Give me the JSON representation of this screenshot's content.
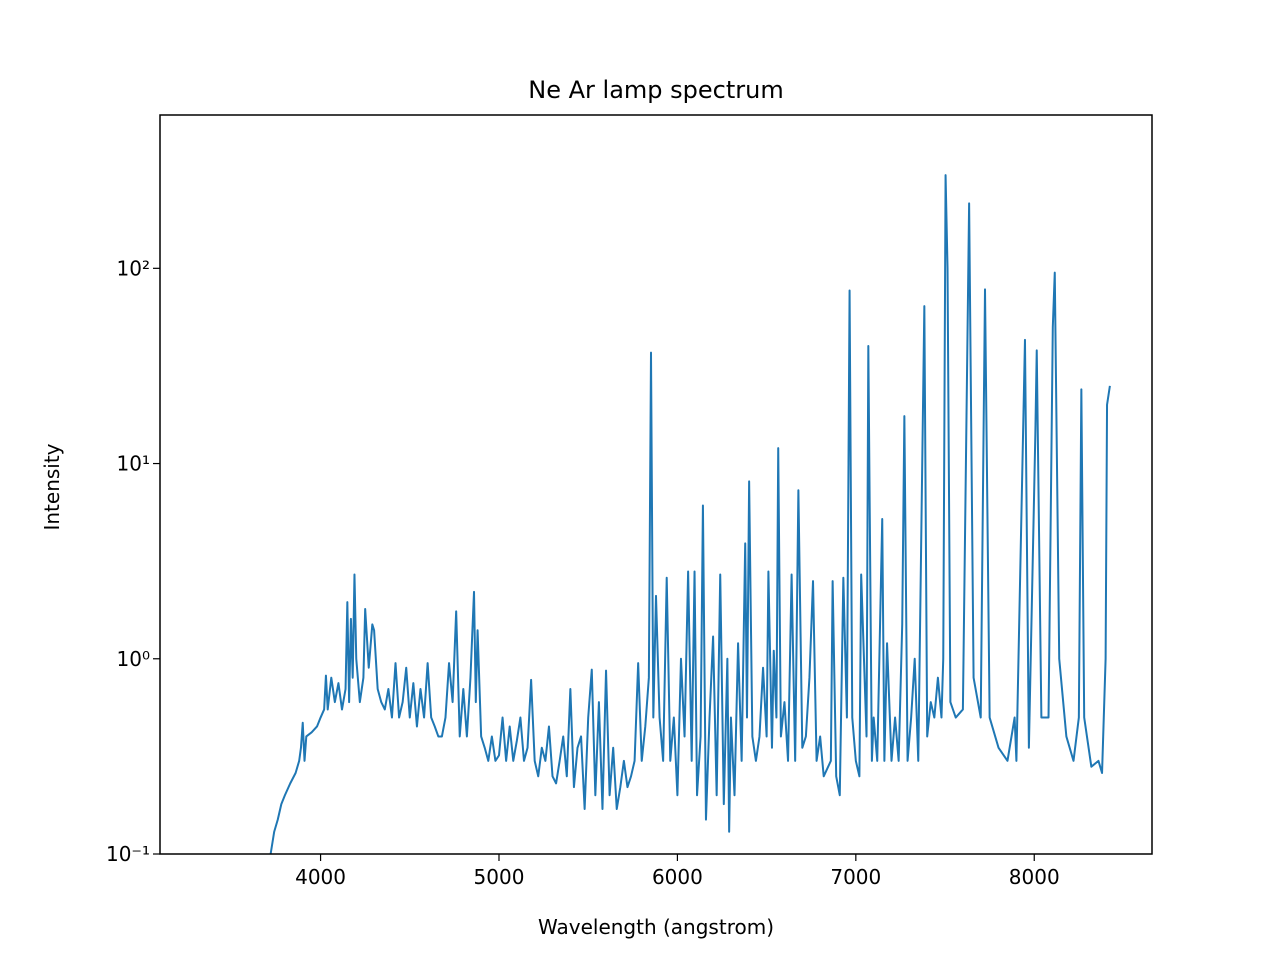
{
  "chart_data": {
    "type": "line",
    "title": "Ne Ar lamp spectrum",
    "xlabel": "Wavelength (angstrom)",
    "ylabel": "Intensity",
    "log_y": true,
    "grid": false,
    "xlim": [
      3100,
      8660
    ],
    "ylim": [
      0.1,
      610
    ],
    "xticks": [
      4000,
      5000,
      6000,
      7000,
      8000
    ],
    "yticks": [
      {
        "value": 0.1,
        "label": "10⁻¹"
      },
      {
        "value": 1,
        "label": "10⁰"
      },
      {
        "value": 10,
        "label": "10¹"
      },
      {
        "value": 100,
        "label": "10²"
      }
    ],
    "series": [
      {
        "color": "#1f77b4",
        "x": [
          3720,
          3740,
          3760,
          3780,
          3800,
          3830,
          3860,
          3880,
          3890,
          3900,
          3910,
          3920,
          3950,
          3980,
          4000,
          4020,
          4030,
          4040,
          4060,
          4080,
          4100,
          4120,
          4140,
          4150,
          4160,
          4170,
          4180,
          4190,
          4200,
          4220,
          4240,
          4250,
          4270,
          4290,
          4300,
          4320,
          4340,
          4360,
          4380,
          4400,
          4420,
          4440,
          4460,
          4480,
          4500,
          4520,
          4540,
          4560,
          4580,
          4600,
          4620,
          4640,
          4660,
          4680,
          4700,
          4720,
          4740,
          4760,
          4780,
          4800,
          4820,
          4840,
          4860,
          4870,
          4880,
          4900,
          4920,
          4940,
          4960,
          4980,
          5000,
          5020,
          5040,
          5060,
          5080,
          5100,
          5120,
          5140,
          5160,
          5180,
          5200,
          5220,
          5240,
          5260,
          5280,
          5300,
          5320,
          5340,
          5360,
          5380,
          5400,
          5420,
          5440,
          5460,
          5480,
          5500,
          5520,
          5540,
          5560,
          5580,
          5600,
          5620,
          5640,
          5660,
          5680,
          5700,
          5720,
          5740,
          5760,
          5780,
          5800,
          5820,
          5840,
          5852,
          5865,
          5880,
          5900,
          5920,
          5940,
          5960,
          5980,
          6000,
          6020,
          6040,
          6060,
          6080,
          6096,
          6110,
          6130,
          6143,
          6160,
          6180,
          6200,
          6220,
          6240,
          6260,
          6280,
          6290,
          6300,
          6320,
          6340,
          6360,
          6380,
          6390,
          6402,
          6420,
          6440,
          6460,
          6480,
          6500,
          6510,
          6530,
          6540,
          6555,
          6565,
          6580,
          6600,
          6620,
          6640,
          6660,
          6678,
          6700,
          6720,
          6740,
          6760,
          6780,
          6800,
          6820,
          6860,
          6870,
          6890,
          6910,
          6930,
          6950,
          6965,
          6980,
          7000,
          7020,
          7030,
          7060,
          7070,
          7090,
          7100,
          7120,
          7148,
          7160,
          7175,
          7200,
          7220,
          7240,
          7260,
          7272,
          7290,
          7310,
          7330,
          7350,
          7384,
          7400,
          7420,
          7440,
          7460,
          7480,
          7490,
          7503,
          7514,
          7530,
          7560,
          7600,
          7635,
          7660,
          7700,
          7724,
          7750,
          7800,
          7850,
          7890,
          7900,
          7948,
          7970,
          8006,
          8014,
          8040,
          8080,
          8104,
          8115,
          8140,
          8180,
          8220,
          8250,
          8264,
          8280,
          8320,
          8360,
          8380,
          8400,
          8408,
          8424
        ],
        "values": [
          0.1,
          0.13,
          0.15,
          0.18,
          0.2,
          0.23,
          0.26,
          0.3,
          0.35,
          0.47,
          0.3,
          0.4,
          0.42,
          0.45,
          0.5,
          0.55,
          0.82,
          0.55,
          0.8,
          0.6,
          0.75,
          0.55,
          0.7,
          1.95,
          0.6,
          1.6,
          0.8,
          2.7,
          1.0,
          0.6,
          0.8,
          1.8,
          0.9,
          1.5,
          1.4,
          0.7,
          0.6,
          0.55,
          0.7,
          0.5,
          0.95,
          0.5,
          0.6,
          0.9,
          0.5,
          0.75,
          0.45,
          0.7,
          0.5,
          0.95,
          0.5,
          0.45,
          0.4,
          0.4,
          0.5,
          0.95,
          0.6,
          1.75,
          0.4,
          0.7,
          0.4,
          0.8,
          2.2,
          0.6,
          1.4,
          0.4,
          0.35,
          0.3,
          0.4,
          0.3,
          0.32,
          0.5,
          0.3,
          0.45,
          0.3,
          0.38,
          0.5,
          0.3,
          0.35,
          0.78,
          0.3,
          0.25,
          0.35,
          0.3,
          0.45,
          0.25,
          0.23,
          0.3,
          0.4,
          0.25,
          0.7,
          0.22,
          0.35,
          0.4,
          0.17,
          0.5,
          0.88,
          0.2,
          0.6,
          0.17,
          0.87,
          0.2,
          0.35,
          0.17,
          0.22,
          0.3,
          0.22,
          0.25,
          0.3,
          0.95,
          0.3,
          0.45,
          0.8,
          37,
          0.5,
          2.1,
          0.5,
          0.3,
          2.6,
          0.3,
          0.5,
          0.2,
          1.0,
          0.4,
          2.8,
          0.3,
          2.8,
          0.2,
          0.4,
          6.1,
          0.15,
          0.5,
          1.3,
          0.2,
          2.7,
          0.18,
          1.0,
          0.13,
          0.5,
          0.2,
          1.2,
          0.3,
          3.9,
          0.5,
          8.1,
          0.4,
          0.3,
          0.4,
          0.9,
          0.4,
          2.8,
          0.35,
          1.1,
          0.5,
          12,
          0.4,
          0.6,
          0.3,
          2.7,
          0.3,
          7.3,
          0.35,
          0.4,
          0.8,
          2.5,
          0.3,
          0.4,
          0.25,
          0.3,
          2.5,
          0.25,
          0.2,
          2.6,
          0.5,
          77,
          0.5,
          0.3,
          0.25,
          2.7,
          0.4,
          40,
          0.3,
          0.5,
          0.3,
          5.2,
          0.3,
          1.2,
          0.3,
          0.5,
          0.3,
          1.5,
          17.5,
          0.3,
          0.5,
          1.0,
          0.3,
          64,
          0.4,
          0.6,
          0.5,
          0.8,
          0.5,
          1.0,
          300,
          100,
          0.6,
          0.5,
          0.55,
          215,
          0.8,
          0.5,
          78,
          0.5,
          0.35,
          0.3,
          0.5,
          0.3,
          43,
          0.35,
          14,
          38,
          0.5,
          0.5,
          50,
          95,
          1.0,
          0.4,
          0.3,
          0.5,
          24,
          0.5,
          0.28,
          0.3,
          0.26,
          1.0,
          20,
          25
        ]
      }
    ]
  }
}
